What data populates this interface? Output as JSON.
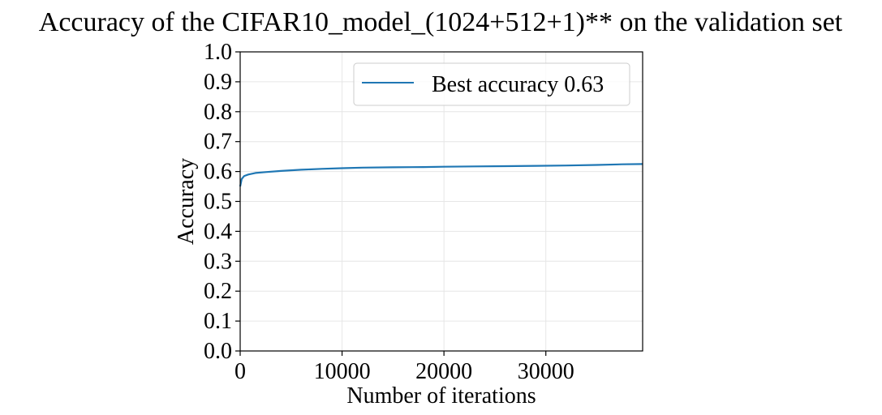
{
  "chart_data": {
    "type": "line",
    "title": "Accuracy of the CIFAR10_model_(1024+512+1)** on the validation set",
    "xlabel": "Number of iterations",
    "ylabel": "Accuracy",
    "xlim": [
      0,
      39500
    ],
    "ylim": [
      0,
      1.0
    ],
    "x_ticks": [
      0,
      10000,
      20000,
      30000
    ],
    "x_tick_labels": [
      "0",
      "10000",
      "20000",
      "30000"
    ],
    "y_ticks": [
      0.0,
      0.1,
      0.2,
      0.3,
      0.4,
      0.5,
      0.6,
      0.7,
      0.8,
      0.9,
      1.0
    ],
    "y_tick_labels": [
      "0.0",
      "0.1",
      "0.2",
      "0.3",
      "0.4",
      "0.5",
      "0.6",
      "0.7",
      "0.8",
      "0.9",
      "1.0"
    ],
    "grid": true,
    "legend_position": "top-right",
    "series": [
      {
        "name": "Best accuracy 0.63",
        "color": "#1f77b4",
        "x": [
          0,
          150,
          400,
          800,
          1500,
          2500,
          4000,
          6000,
          8000,
          10000,
          12000,
          15000,
          18000,
          20000,
          23000,
          26000,
          29000,
          32000,
          35000,
          37500,
          39500
        ],
        "y": [
          0.55,
          0.575,
          0.585,
          0.59,
          0.595,
          0.598,
          0.602,
          0.606,
          0.609,
          0.611,
          0.613,
          0.614,
          0.615,
          0.616,
          0.617,
          0.618,
          0.619,
          0.62,
          0.622,
          0.624,
          0.625
        ]
      }
    ]
  }
}
